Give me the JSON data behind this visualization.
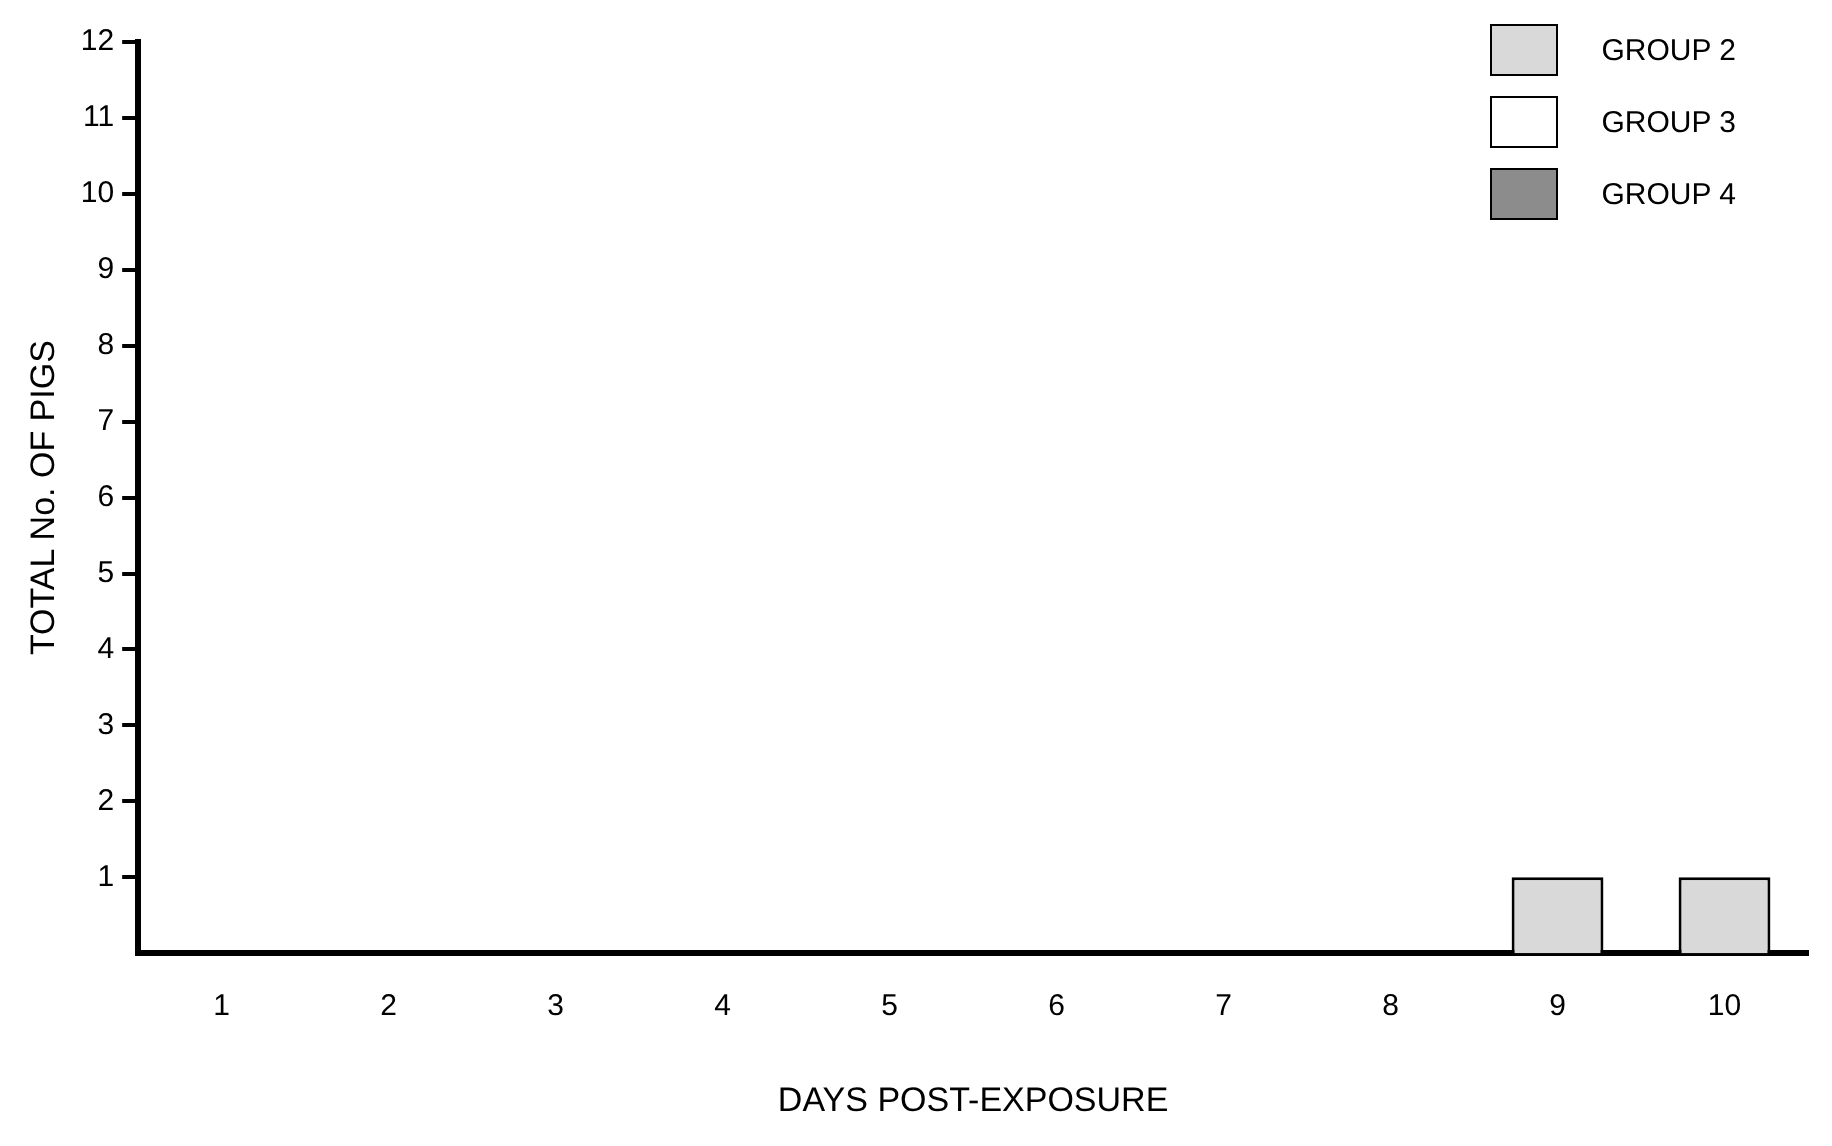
{
  "chart_data": {
    "type": "bar",
    "xlabel": "DAYS POST-EXPOSURE",
    "ylabel": "TOTAL No. OF PIGS",
    "categories": [
      "1",
      "2",
      "3",
      "4",
      "5",
      "6",
      "7",
      "8",
      "9",
      "10"
    ],
    "series": [
      {
        "name": "GROUP 2",
        "color": "#d9d9d9",
        "values": [
          0,
          0,
          0,
          0,
          0,
          0,
          0,
          0,
          1,
          1
        ]
      },
      {
        "name": "GROUP 3",
        "color": "#ffffff",
        "values": [
          0,
          0,
          0,
          0,
          0,
          0,
          0,
          0,
          0,
          0
        ]
      },
      {
        "name": "GROUP 4",
        "color": "#8c8c8c",
        "values": [
          0,
          0,
          0,
          0,
          0,
          0,
          0,
          0,
          0,
          0
        ]
      }
    ],
    "ylim": [
      0,
      12
    ],
    "yticks": [
      1,
      2,
      3,
      4,
      5,
      6,
      7,
      8,
      9,
      10,
      11,
      12
    ],
    "grid": false,
    "legend": "top right"
  }
}
